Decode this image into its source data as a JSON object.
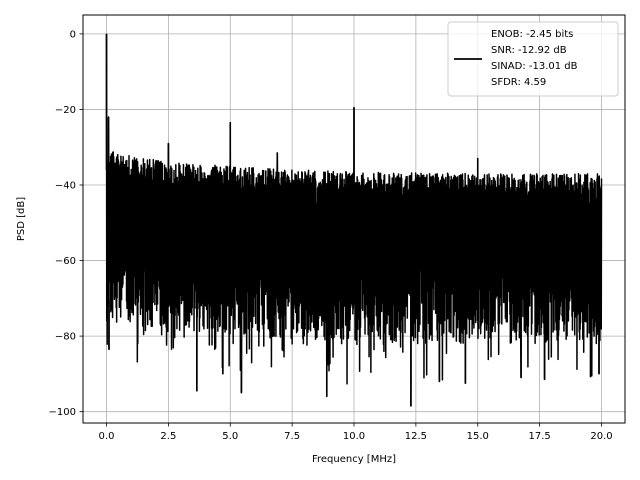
{
  "chart_data": {
    "type": "line",
    "title": "",
    "xlabel": "Frequency [MHz]",
    "ylabel": "PSD [dB]",
    "xlim": [
      -0.95,
      20.95
    ],
    "ylim": [
      -103,
      5
    ],
    "xticks": [
      0.0,
      2.5,
      5.0,
      7.5,
      10.0,
      12.5,
      15.0,
      17.5,
      20.0
    ],
    "xtick_labels": [
      "0.0",
      "2.5",
      "5.0",
      "7.5",
      "10.0",
      "12.5",
      "15.0",
      "17.5",
      "20.0"
    ],
    "yticks": [
      0,
      -20,
      -40,
      -60,
      -80,
      -100
    ],
    "ytick_labels": [
      "0",
      "−20",
      "−40",
      "−60",
      "−80",
      "−100"
    ],
    "grid": true,
    "legend_position": "top-right",
    "legend_entries": [
      "ENOB: -2.45 bits",
      "SNR: -12.92 dB",
      "SINAD: -13.01 dB",
      "SFDR: 4.59"
    ],
    "series": [
      {
        "color": "#000000",
        "noise_upper_db": [
          -31,
          -34,
          -35,
          -36,
          -36.5,
          -37,
          -37
        ],
        "noise_upper_x": [
          0.1,
          2.5,
          5,
          7.5,
          10,
          15,
          20
        ],
        "noise_lower_db_typical": -75,
        "peaks": [
          {
            "x": 0.0,
            "y": 0
          },
          {
            "x": 0.08,
            "y": -22
          },
          {
            "x": 2.5,
            "y": -29
          },
          {
            "x": 5.0,
            "y": -23.5
          },
          {
            "x": 6.9,
            "y": -31.5
          },
          {
            "x": 10.0,
            "y": -19.5
          },
          {
            "x": 15.0,
            "y": -33
          }
        ],
        "dips": [
          {
            "x": 0.1,
            "y": -83.5
          },
          {
            "x": 3.65,
            "y": -94.5
          },
          {
            "x": 4.7,
            "y": -90
          },
          {
            "x": 5.45,
            "y": -95
          },
          {
            "x": 8.9,
            "y": -96
          },
          {
            "x": 12.3,
            "y": -98.5
          },
          {
            "x": 13.45,
            "y": -92
          },
          {
            "x": 14.5,
            "y": -92.5
          },
          {
            "x": 16.75,
            "y": -91
          },
          {
            "x": 17.7,
            "y": -91.5
          },
          {
            "x": 19.9,
            "y": -90
          }
        ]
      }
    ]
  }
}
